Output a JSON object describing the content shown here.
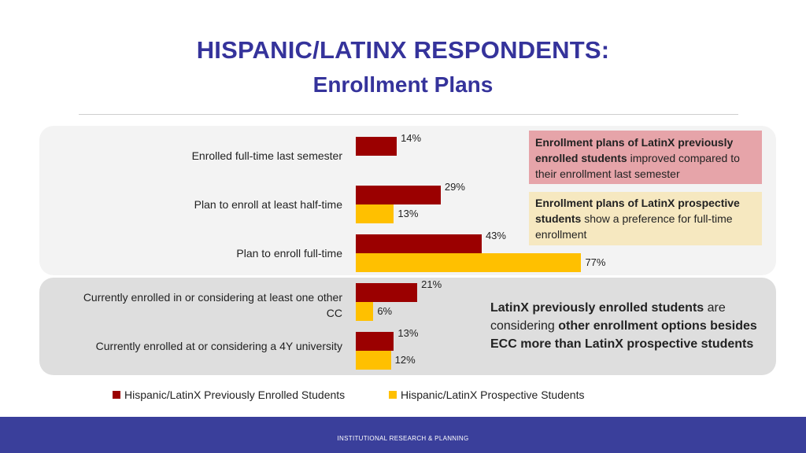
{
  "header": {
    "title": "HISPANIC/LATINX RESPONDENTS:",
    "subtitle": "Enrollment Plans"
  },
  "footer": {
    "text": "INSTITUTIONAL RESEARCH & PLANNING"
  },
  "notes": {
    "note1": {
      "bold": "Enrollment plans of LatinX previously enrolled students",
      "rest": " improved compared to their enrollment last semester"
    },
    "note2": {
      "bold": "Enrollment plans of LatinX prospective students",
      "rest": " show a preference for full-time enrollment"
    },
    "note3": {
      "bold1": "LatinX previously enrolled students",
      "text1": " are considering ",
      "bold2": "other enrollment options besides ECC more than LatinX prospective students"
    }
  },
  "chart_data": {
    "type": "bar",
    "orientation": "horizontal",
    "categories": [
      "Enrolled full-time last semester",
      "Plan to enroll at least half-time",
      "Plan to enroll full-time",
      "Currently enrolled in or considering at least one other CC",
      "Currently enrolled at or considering a 4Y university"
    ],
    "series": [
      {
        "name": "Hispanic/LatinX Previously Enrolled Students",
        "color": "#9b0000",
        "values": [
          14,
          29,
          43,
          21,
          13
        ],
        "labels": [
          "14%",
          "29%",
          "43%",
          "21%",
          "13%"
        ]
      },
      {
        "name": "Hispanic/LatinX Prospective Students",
        "color": "#ffc000",
        "values": [
          null,
          13,
          77,
          6,
          12
        ],
        "labels": [
          "",
          "13%",
          "77%",
          "6%",
          "12%"
        ]
      }
    ],
    "legend_position": "bottom",
    "grid": false
  }
}
